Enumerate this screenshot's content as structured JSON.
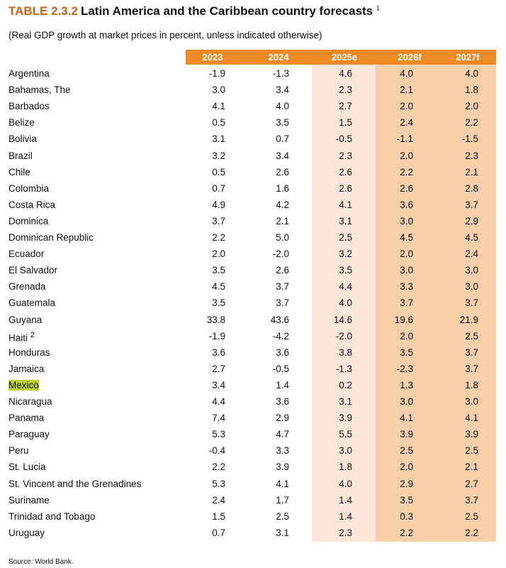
{
  "header": {
    "label": "TABLE 2.3.2",
    "title": "Latin America and the Caribbean country forecasts",
    "note": "1"
  },
  "subtitle": "(Real GDP growth at market prices in percent, unless indicated otherwise)",
  "table": {
    "columns": [
      "2023",
      "2024",
      "2025e",
      "2026f",
      "2027f"
    ],
    "rows": [
      {
        "name": "Argentina",
        "values": [
          "-1.9",
          "-1.3",
          "4.6",
          "4.0",
          "4.0"
        ]
      },
      {
        "name": "Bahamas, The",
        "values": [
          "3.0",
          "3.4",
          "2.3",
          "2.1",
          "1.8"
        ]
      },
      {
        "name": "Barbados",
        "values": [
          "4.1",
          "4.0",
          "2.7",
          "2.0",
          "2.0"
        ]
      },
      {
        "name": "Belize",
        "values": [
          "0.5",
          "3.5",
          "1.5",
          "2.4",
          "2.2"
        ]
      },
      {
        "name": "Bolivia",
        "values": [
          "3.1",
          "0.7",
          "-0.5",
          "-1.1",
          "-1.5"
        ]
      },
      {
        "name": "Brazil",
        "values": [
          "3.2",
          "3.4",
          "2.3",
          "2.0",
          "2.3"
        ]
      },
      {
        "name": "Chile",
        "values": [
          "0.5",
          "2.6",
          "2.6",
          "2.2",
          "2.1"
        ]
      },
      {
        "name": "Colombia",
        "values": [
          "0.7",
          "1.6",
          "2.6",
          "2.6",
          "2.8"
        ]
      },
      {
        "name": "Costa Rica",
        "values": [
          "4.9",
          "4.2",
          "4.1",
          "3.6",
          "3.7"
        ]
      },
      {
        "name": "Dominica",
        "values": [
          "3.7",
          "2.1",
          "3.1",
          "3.0",
          "2.9"
        ]
      },
      {
        "name": "Dominican Republic",
        "values": [
          "2.2",
          "5.0",
          "2.5",
          "4.5",
          "4.5"
        ]
      },
      {
        "name": "Ecuador",
        "values": [
          "2.0",
          "-2.0",
          "3.2",
          "2.0",
          "2.4"
        ]
      },
      {
        "name": "El Salvador",
        "values": [
          "3.5",
          "2.6",
          "3.5",
          "3.0",
          "3.0"
        ]
      },
      {
        "name": "Grenada",
        "values": [
          "4.5",
          "3.7",
          "4.4",
          "3.3",
          "3.0"
        ]
      },
      {
        "name": "Guatemala",
        "values": [
          "3.5",
          "3.7",
          "4.0",
          "3.7",
          "3.7"
        ]
      },
      {
        "name": "Guyana",
        "values": [
          "33.8",
          "43.6",
          "14.6",
          "19.6",
          "21.9"
        ]
      },
      {
        "name": "Haiti",
        "note": "2",
        "values": [
          "-1.9",
          "-4.2",
          "-2.0",
          "2.0",
          "2.5"
        ]
      },
      {
        "name": "Honduras",
        "values": [
          "3.6",
          "3.6",
          "3.8",
          "3.5",
          "3.7"
        ]
      },
      {
        "name": "Jamaica",
        "values": [
          "2.7",
          "-0.5",
          "-1.3",
          "-2.3",
          "3.7"
        ]
      },
      {
        "name": "Mexico",
        "highlight": true,
        "values": [
          "3.4",
          "1.4",
          "0.2",
          "1.3",
          "1.8"
        ]
      },
      {
        "name": "Nicaragua",
        "values": [
          "4.4",
          "3.6",
          "3.1",
          "3.0",
          "3.0"
        ]
      },
      {
        "name": "Panama",
        "values": [
          "7.4",
          "2.9",
          "3.9",
          "4.1",
          "4.1"
        ]
      },
      {
        "name": "Paraguay",
        "values": [
          "5.3",
          "4.7",
          "5.5",
          "3.9",
          "3.9"
        ]
      },
      {
        "name": "Peru",
        "values": [
          "-0.4",
          "3.3",
          "3.0",
          "2.5",
          "2.5"
        ]
      },
      {
        "name": "St. Lucia",
        "values": [
          "2.2",
          "3.9",
          "1.8",
          "2.0",
          "2.1"
        ]
      },
      {
        "name": "St. Vincent and the Grenadines",
        "values": [
          "5.3",
          "4.1",
          "4.0",
          "2.9",
          "2.7"
        ]
      },
      {
        "name": "Suriname",
        "values": [
          "2.4",
          "1.7",
          "1.4",
          "3.5",
          "3.7"
        ]
      },
      {
        "name": "Trinidad and Tobago",
        "values": [
          "1.5",
          "2.5",
          "1.4",
          "0.3",
          "2.5"
        ]
      },
      {
        "name": "Uruguay",
        "values": [
          "0.7",
          "3.1",
          "2.3",
          "2.2",
          "2.2"
        ]
      }
    ]
  },
  "source": "Source: World Bank."
}
